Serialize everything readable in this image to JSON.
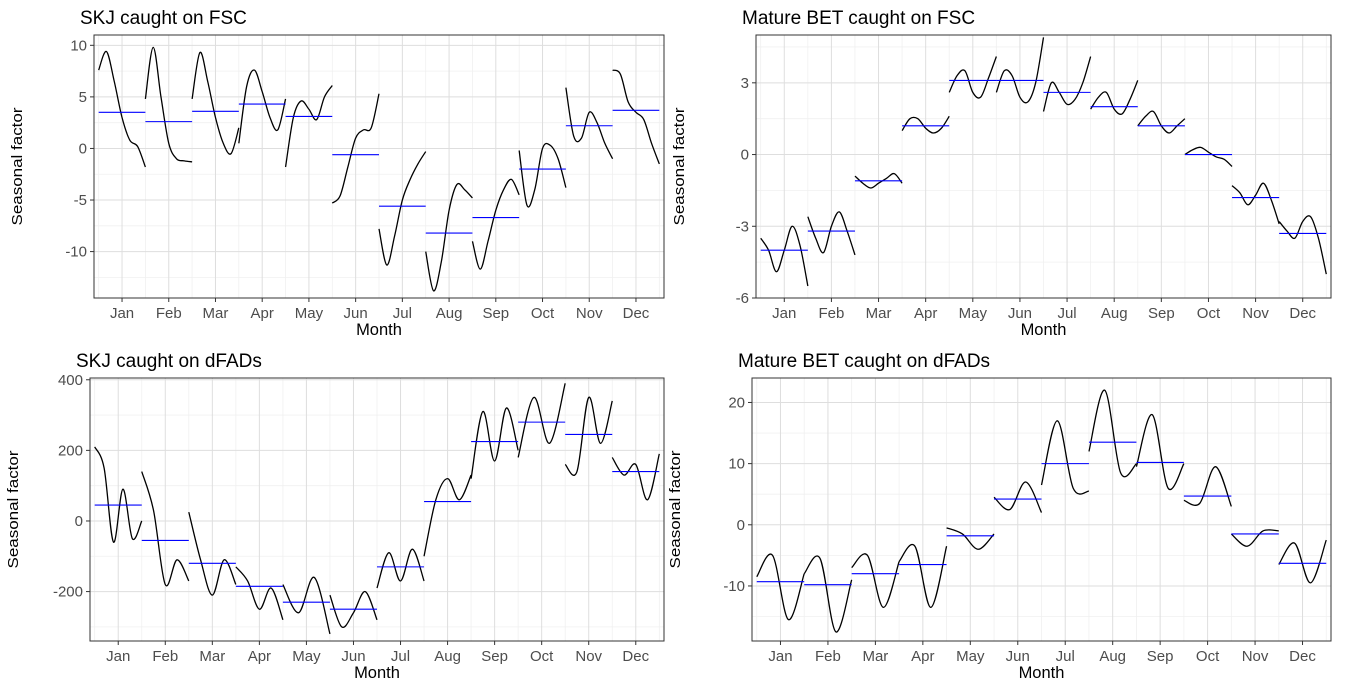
{
  "chart_data": [
    {
      "type": "line",
      "title": "SKJ caught on FSC",
      "xlabel": "Month",
      "ylabel": "Seasonal factor",
      "categories": [
        "Jan",
        "Feb",
        "Mar",
        "Apr",
        "May",
        "Jun",
        "Jul",
        "Aug",
        "Sep",
        "Oct",
        "Nov",
        "Dec"
      ],
      "ylim": [
        -14.5,
        11
      ],
      "yticks": [
        10,
        5,
        0,
        -5,
        -10
      ],
      "grid": true,
      "series": [
        {
          "values": [
            [
              7.6,
              9.4,
              6.5,
              3.0,
              0.8,
              0.2,
              -1.8
            ],
            [
              4.8,
              9.8,
              5.0,
              0.5,
              -1.0,
              -1.2,
              -1.3
            ],
            [
              4.8,
              9.3,
              6.5,
              3.0,
              0.5,
              -0.5,
              2.0
            ],
            [
              0.5,
              6.0,
              7.6,
              5.5,
              3.0,
              1.8,
              4.8
            ],
            [
              -1.8,
              3.0,
              4.6,
              3.8,
              2.8,
              5.0,
              6.1
            ],
            [
              -5.3,
              -4.6,
              -1.8,
              1.0,
              1.8,
              2.0,
              5.3
            ],
            [
              -7.8,
              -11.3,
              -8.5,
              -5.0,
              -3.0,
              -1.5,
              -0.3
            ],
            [
              -10.0,
              -13.8,
              -11.0,
              -6.0,
              -3.5,
              -4.0,
              -4.8
            ],
            [
              -9.0,
              -11.7,
              -9.0,
              -6.0,
              -4.0,
              -3.0,
              -4.5
            ],
            [
              -0.2,
              -5.5,
              -4.0,
              0.0,
              0.3,
              -1.0,
              -3.8
            ],
            [
              5.9,
              1.2,
              1.0,
              3.5,
              2.5,
              0.5,
              -1.0
            ],
            [
              7.6,
              7.2,
              4.5,
              3.5,
              2.8,
              0.5,
              -1.5
            ]
          ]
        },
        {
          "values": [
            3.5,
            2.6,
            3.6,
            4.3,
            3.1,
            -0.6,
            -5.6,
            -8.2,
            -6.7,
            -2.0,
            2.2,
            3.7
          ]
        }
      ]
    },
    {
      "type": "line",
      "title": "Mature BET caught on FSC",
      "xlabel": "Month",
      "ylabel": "Seasonal factor",
      "categories": [
        "Jan",
        "Feb",
        "Mar",
        "Apr",
        "May",
        "Jun",
        "Jul",
        "Aug",
        "Sep",
        "Oct",
        "Nov",
        "Dec"
      ],
      "ylim": [
        -6,
        5
      ],
      "yticks": [
        3,
        0,
        -3,
        -6
      ],
      "grid": true,
      "series": [
        {
          "values": [
            [
              -3.5,
              -4.0,
              -4.9,
              -4.0,
              -3.0,
              -3.8,
              -5.5
            ],
            [
              -2.6,
              -3.5,
              -4.1,
              -3.0,
              -2.4,
              -3.2,
              -4.2
            ],
            [
              -0.9,
              -1.2,
              -1.4,
              -1.2,
              -1.0,
              -0.8,
              -1.2
            ],
            [
              1.0,
              1.5,
              1.5,
              1.1,
              0.9,
              1.1,
              1.6
            ],
            [
              2.6,
              3.3,
              3.5,
              2.6,
              2.4,
              3.2,
              4.1
            ],
            [
              2.6,
              3.5,
              3.3,
              2.4,
              2.2,
              3.0,
              4.9
            ],
            [
              1.8,
              3.0,
              2.6,
              2.1,
              2.3,
              3.0,
              4.1
            ],
            [
              1.9,
              2.4,
              2.6,
              1.9,
              1.7,
              2.3,
              3.1
            ],
            [
              1.2,
              1.6,
              1.8,
              1.2,
              0.9,
              1.2,
              1.5
            ],
            [
              0.0,
              0.2,
              0.3,
              0.1,
              -0.1,
              -0.2,
              -0.5
            ],
            [
              -1.3,
              -1.6,
              -2.1,
              -1.7,
              -1.2,
              -1.9,
              -2.9
            ],
            [
              -2.8,
              -3.2,
              -3.5,
              -2.8,
              -2.6,
              -3.5,
              -5.0
            ]
          ]
        },
        {
          "values": [
            -4.0,
            -3.2,
            -1.1,
            1.2,
            3.1,
            3.1,
            2.6,
            2.0,
            1.2,
            0.0,
            -1.8,
            -3.3
          ]
        }
      ]
    },
    {
      "type": "line",
      "title": "SKJ caught on dFADs",
      "xlabel": "Month",
      "ylabel": "Seasonal factor",
      "categories": [
        "Jan",
        "Feb",
        "Mar",
        "Apr",
        "May",
        "Jun",
        "Jul",
        "Aug",
        "Sep",
        "Oct",
        "Nov",
        "Dec"
      ],
      "ylim": [
        -340,
        405
      ],
      "yticks": [
        400,
        200,
        0,
        -200
      ],
      "grid": true,
      "series": [
        {
          "values": [
            [
              210,
              150,
              -60,
              90,
              -50,
              0
            ],
            [
              140,
              30,
              -180,
              -110,
              -170
            ],
            [
              25,
              -110,
              -210,
              -110,
              -180
            ],
            [
              -130,
              -170,
              -250,
              -190,
              -280
            ],
            [
              -180,
              -260,
              -160,
              -320
            ],
            [
              -210,
              -300,
              -260,
              -200,
              -280
            ],
            [
              -190,
              -90,
              -170,
              -80,
              -170
            ],
            [
              -100,
              60,
              120,
              60,
              130
            ],
            [
              120,
              310,
              170,
              320,
              200
            ],
            [
              180,
              350,
              220,
              390
            ],
            [
              160,
              140,
              350,
              220,
              340
            ],
            [
              180,
              130,
              160,
              60,
              190
            ]
          ]
        },
        {
          "values": [
            45,
            -55,
            -120,
            -185,
            -230,
            -250,
            -130,
            55,
            225,
            280,
            245,
            140
          ]
        }
      ]
    },
    {
      "type": "line",
      "title": "Mature BET caught on dFADs",
      "xlabel": "Month",
      "ylabel": "Seasonal factor",
      "categories": [
        "Jan",
        "Feb",
        "Mar",
        "Apr",
        "May",
        "Jun",
        "Jul",
        "Aug",
        "Sep",
        "Oct",
        "Nov",
        "Dec"
      ],
      "ylim": [
        -19,
        24
      ],
      "yticks": [
        20,
        10,
        0,
        -10
      ],
      "grid": true,
      "series": [
        {
          "values": [
            [
              -8.5,
              -5.0,
              -15.5,
              -8.0
            ],
            [
              -8.0,
              -5.5,
              -17.5,
              -9.0
            ],
            [
              -7.0,
              -5.0,
              -13.5,
              -6.0
            ],
            [
              -6.0,
              -3.5,
              -13.5,
              -3.5
            ],
            [
              -0.5,
              -1.5,
              -4.0,
              -1.5
            ],
            [
              4.5,
              2.5,
              7.0,
              2.0
            ],
            [
              6.5,
              17.0,
              6.0,
              5.5
            ],
            [
              12.0,
              22.0,
              8.5,
              10.0
            ],
            [
              9.5,
              18.0,
              6.0,
              10.0
            ],
            [
              4.0,
              3.5,
              9.5,
              3.0
            ],
            [
              -1.5,
              -3.5,
              -1.0,
              -1.0
            ],
            [
              -6.5,
              -3.0,
              -9.5,
              -2.5
            ]
          ]
        },
        {
          "values": [
            -9.3,
            -9.8,
            -8.0,
            -6.5,
            -1.8,
            4.2,
            10.0,
            13.5,
            10.2,
            4.7,
            -1.5,
            -6.3
          ]
        }
      ]
    }
  ]
}
